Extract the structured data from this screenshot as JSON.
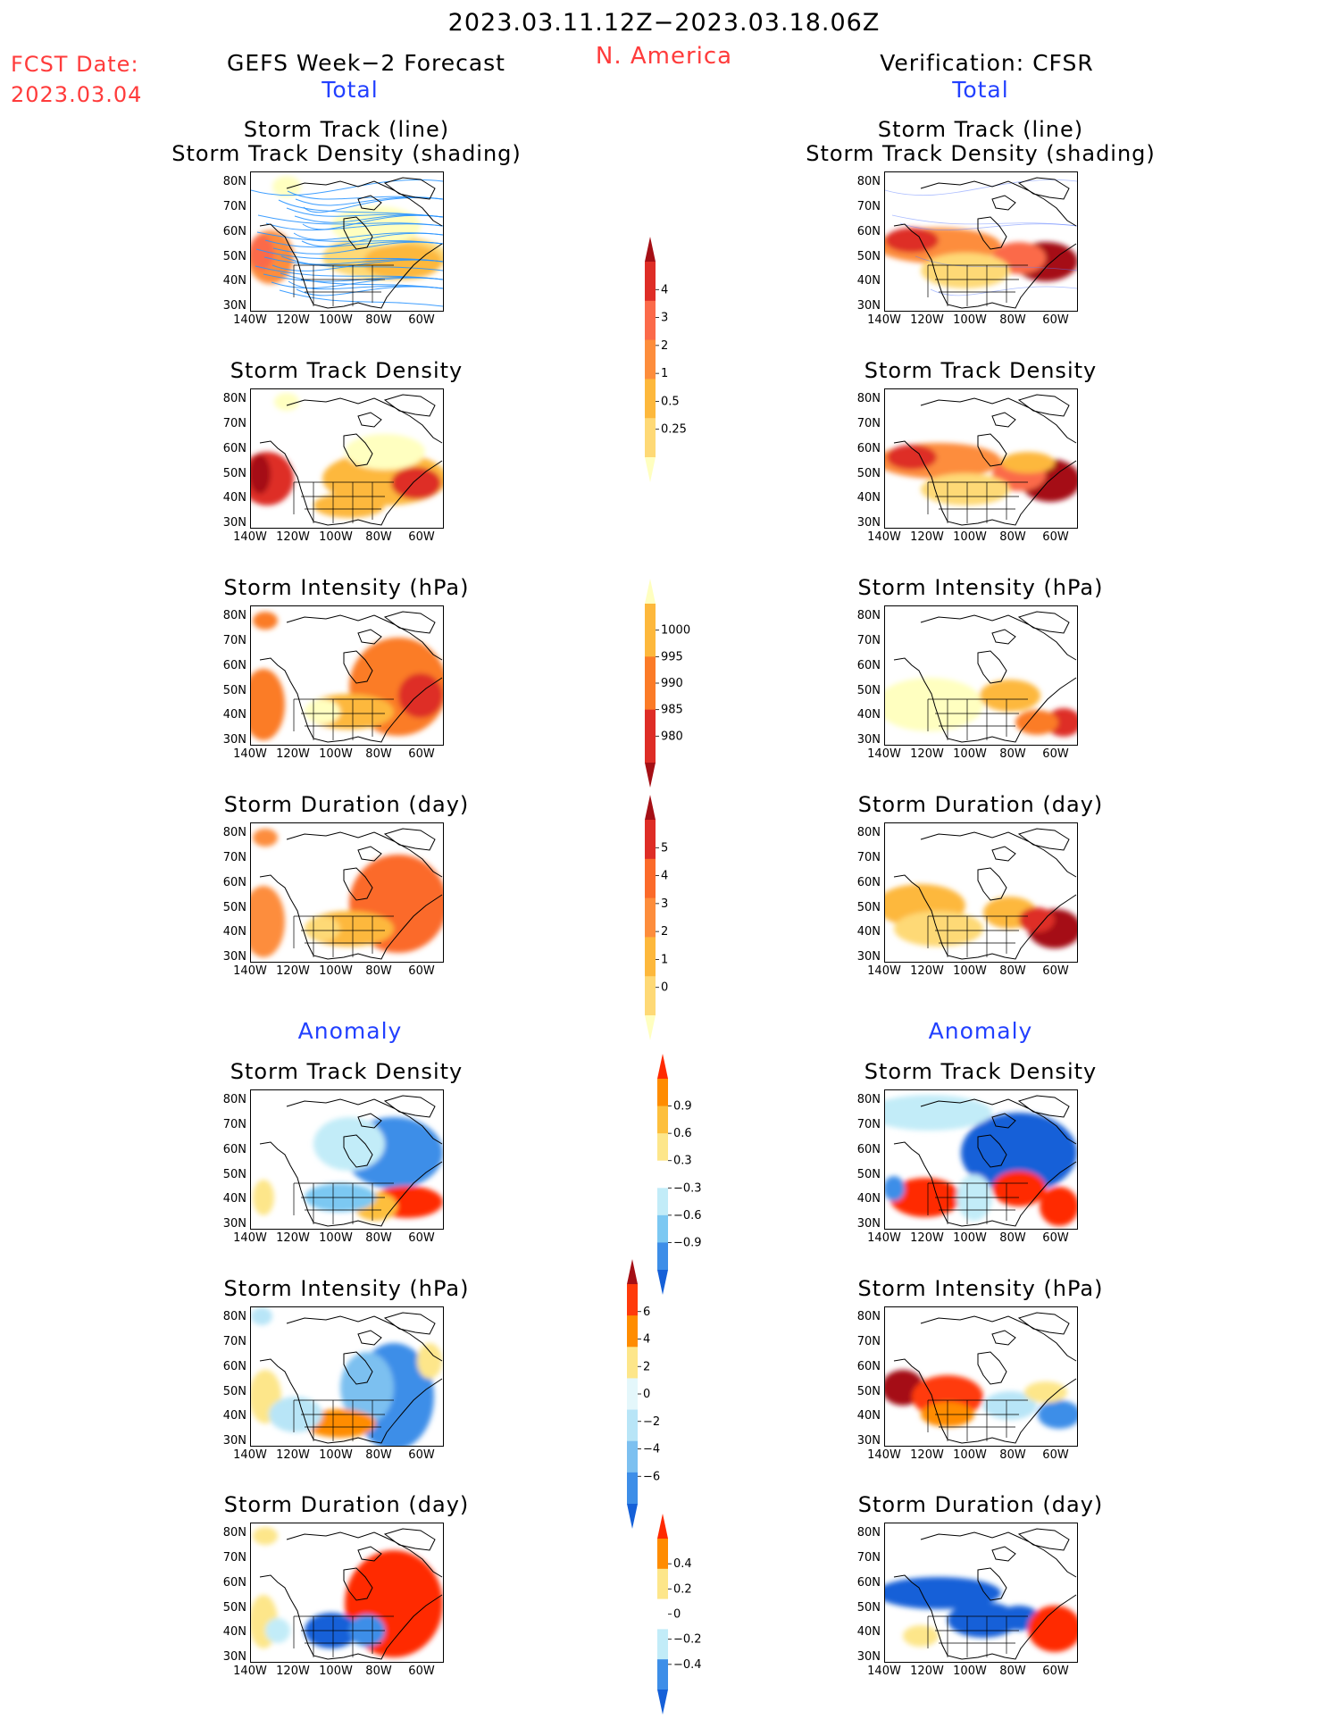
{
  "header": {
    "date_range": "2023.03.11.12Z−2023.03.18.06Z",
    "region": "N. America",
    "fcst_label": "FCST Date:",
    "fcst_date": "2023.03.04",
    "left_title": "GEFS Week−2 Forecast",
    "right_title": "Verification: CFSR",
    "total_label": "Total",
    "anomaly_label": "Anomaly"
  },
  "panel_titles": {
    "track_line": "Storm Track (line)",
    "track_shading": "Storm Track Density (shading)",
    "density": "Storm Track Density",
    "intensity": "Storm Intensity (hPa)",
    "duration": "Storm Duration (day)"
  },
  "axes": {
    "lat_labels": [
      "80N",
      "70N",
      "60N",
      "50N",
      "40N",
      "30N"
    ],
    "lon_labels": [
      "140W",
      "120W",
      "100W",
      "80W",
      "60W"
    ]
  },
  "colorbars": {
    "density_total": {
      "labels": [
        "4",
        "3",
        "2",
        "1",
        "0.5",
        "0.25"
      ],
      "colors": [
        "#a50f15",
        "#de2d26",
        "#fb6a4a",
        "#fd8d3c",
        "#fdb83c",
        "#fed976",
        "#ffffc0"
      ]
    },
    "intensity_total": {
      "labels": [
        "1000",
        "995",
        "990",
        "985",
        "980"
      ],
      "colors": [
        "#ffffc0",
        "#fdb83c",
        "#fb7b27",
        "#de2d26",
        "#a50f15"
      ]
    },
    "duration_total": {
      "labels": [
        "5",
        "4",
        "3",
        "2",
        "1",
        "0"
      ],
      "colors": [
        "#a50f15",
        "#de2d26",
        "#fb6a2a",
        "#fd8d3c",
        "#fdb83c",
        "#fed976",
        "#ffffc0"
      ]
    },
    "density_anom": {
      "labels": [
        "0.9",
        "0.6",
        "0.3",
        "−0.3",
        "−0.6",
        "−0.9"
      ],
      "colors": [
        "#ff2a00",
        "#ff8c00",
        "#fdbf3c",
        "#fde68a",
        "#ffffff",
        "#c2ecf8",
        "#7cc8f2",
        "#3d8ee8",
        "#1560d8"
      ]
    },
    "intensity_anom": {
      "labels": [
        "6",
        "4",
        "2",
        "0",
        "−2",
        "−4",
        "−6"
      ],
      "colors": [
        "#a50f15",
        "#ff3a0a",
        "#ff8c00",
        "#fde68a",
        "#e4f7fb",
        "#b8e5f7",
        "#7cc0f0",
        "#3d8ee8",
        "#1560d8"
      ]
    },
    "duration_anom": {
      "labels": [
        "0.4",
        "0.2",
        "0",
        "−0.2",
        "−0.4"
      ],
      "colors": [
        "#ff2a00",
        "#ff8c00",
        "#fde68a",
        "#ffffff",
        "#c2ecf8",
        "#3d8ee8",
        "#1560d8"
      ]
    }
  }
}
